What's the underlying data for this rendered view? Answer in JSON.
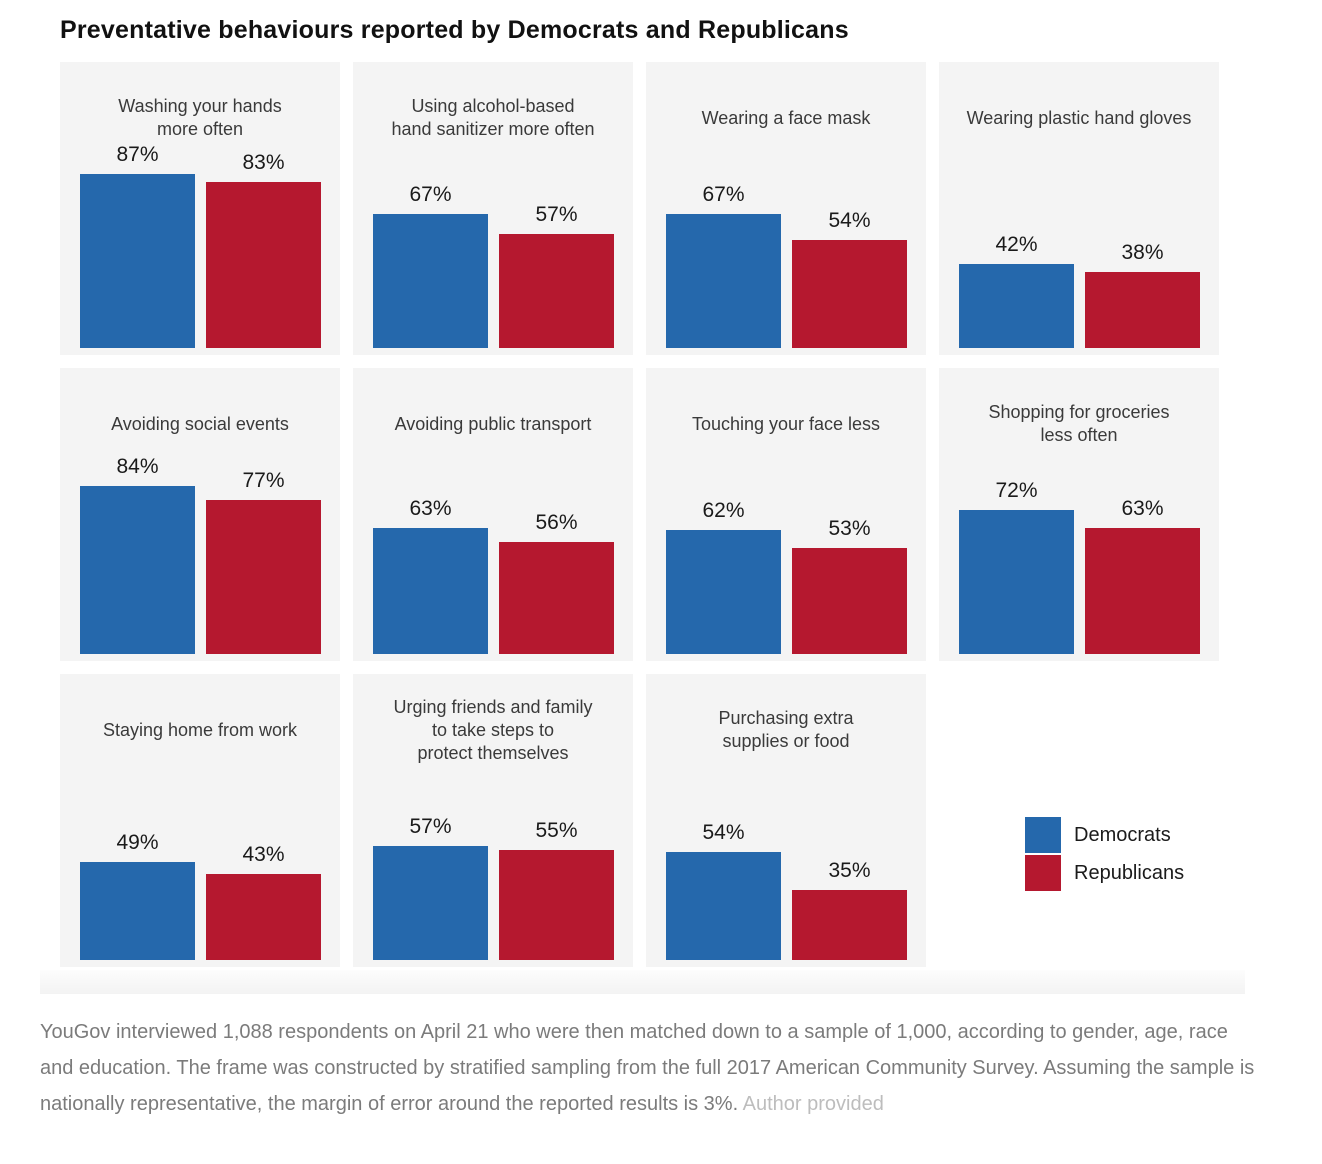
{
  "title": "Preventative behaviours reported by Democrats and Republicans",
  "colors": {
    "democrats": "#2568ac",
    "republicans": "#b5182f",
    "panel_bg": "#f4f4f4"
  },
  "legend": {
    "items": [
      {
        "label": "Democrats",
        "color_key": "democrats"
      },
      {
        "label": "Republicans",
        "color_key": "republicans"
      }
    ]
  },
  "chart_data": {
    "type": "bar",
    "title": "Preventative behaviours reported by Democrats and Republicans",
    "series_names": [
      "Democrats",
      "Republicans"
    ],
    "unit": "percent",
    "value_axis_range": [
      0,
      100
    ],
    "grid": false,
    "axes_shown": false,
    "legend_position": "bottom-right",
    "panels": [
      {
        "title_lines": [
          "Washing your hands",
          "more often"
        ],
        "values": [
          87,
          83
        ],
        "labels": [
          "87%",
          "83%"
        ]
      },
      {
        "title_lines": [
          "Using alcohol-based",
          "hand sanitizer more often"
        ],
        "values": [
          67,
          57
        ],
        "labels": [
          "67%",
          "57%"
        ]
      },
      {
        "title_lines": [
          "Wearing a face mask"
        ],
        "values": [
          67,
          54
        ],
        "labels": [
          "67%",
          "54%"
        ]
      },
      {
        "title_lines": [
          "Wearing plastic hand gloves"
        ],
        "values": [
          42,
          38
        ],
        "labels": [
          "42%",
          "38%"
        ]
      },
      {
        "title_lines": [
          "Avoiding social events"
        ],
        "values": [
          84,
          77
        ],
        "labels": [
          "84%",
          "77%"
        ]
      },
      {
        "title_lines": [
          "Avoiding public transport"
        ],
        "values": [
          63,
          56
        ],
        "labels": [
          "63%",
          "56%"
        ]
      },
      {
        "title_lines": [
          "Touching your face less"
        ],
        "values": [
          62,
          53
        ],
        "labels": [
          "62%",
          "53%"
        ]
      },
      {
        "title_lines": [
          "Shopping for groceries",
          "less often"
        ],
        "values": [
          72,
          63
        ],
        "labels": [
          "72%",
          "63%"
        ]
      },
      {
        "title_lines": [
          "Staying home from work"
        ],
        "values": [
          49,
          43
        ],
        "labels": [
          "49%",
          "43%"
        ]
      },
      {
        "title_lines": [
          "Urging friends and family",
          "to take steps to",
          "protect themselves"
        ],
        "values": [
          57,
          55
        ],
        "labels": [
          "57%",
          "55%"
        ]
      },
      {
        "title_lines": [
          "Purchasing extra",
          "supplies or food"
        ],
        "values": [
          54,
          35
        ],
        "labels": [
          "54%",
          "35%"
        ]
      }
    ]
  },
  "caption": {
    "text": "YouGov interviewed 1,088 respondents on April 21 who were then matched down to a sample of 1,000, according to gender, age, race and education. The frame was constructed by stratified sampling from the full 2017 American Community Survey. Assuming the sample is nationally representative, the margin of error around the reported results is 3%.",
    "credit": "Author provided"
  }
}
